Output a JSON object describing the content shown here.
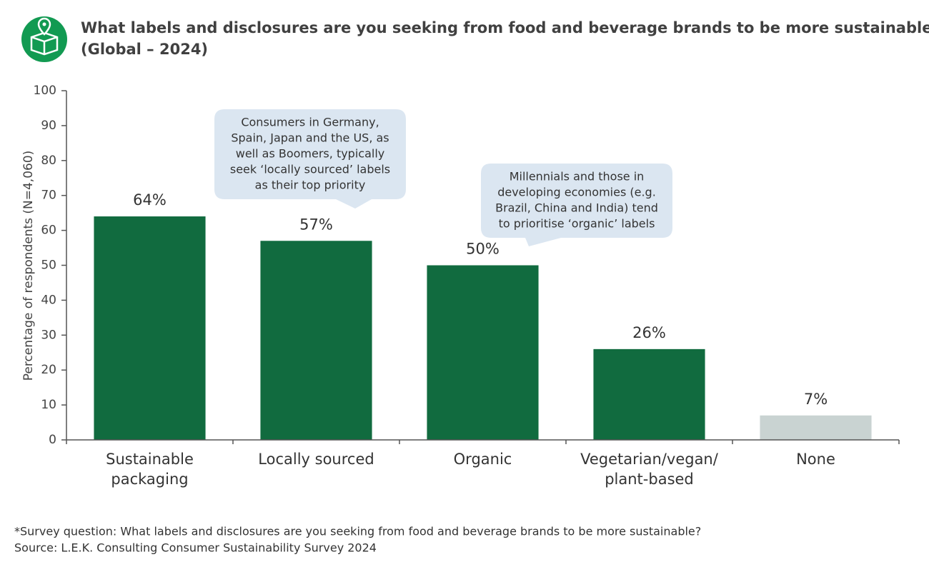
{
  "chart_data": {
    "type": "bar",
    "title": [
      "What labels and disclosures are you seeking from food and beverage brands to be more sustainable?*",
      "(Global – 2024)"
    ],
    "y_label": "Percentage of respondents (N=4,060)",
    "categories": [
      [
        "Sustainable",
        "packaging"
      ],
      [
        "Locally sourced"
      ],
      [
        "Organic"
      ],
      [
        "Vegetarian/vegan/",
        "plant-based"
      ],
      [
        "None"
      ]
    ],
    "values": [
      64,
      57,
      50,
      26,
      7
    ],
    "value_labels": [
      "64%",
      "57%",
      "50%",
      "26%",
      "7%"
    ],
    "colors": [
      "#116b3f",
      "#116b3f",
      "#116b3f",
      "#116b3f",
      "#c9d3d2"
    ],
    "ylim": [
      0,
      100
    ],
    "yticks": [
      0,
      10,
      20,
      30,
      40,
      50,
      60,
      70,
      80,
      90,
      100
    ],
    "annotations": [
      [
        "Consumers in Germany,",
        "Spain, Japan and the US, as",
        "well as Boomers, typically",
        "seek ‘locally sourced’ labels",
        "as their top priority"
      ],
      [
        "Millennials and those in",
        "developing economies (e.g.",
        "Brazil, China and India) tend",
        "to prioritise ‘organic’ labels"
      ]
    ],
    "notes": [
      "*Survey question: What labels and disclosures are you seeking from food and beverage brands to be more sustainable?",
      "Source: L.E.K. Consulting Consumer Sustainability Survey 2024"
    ]
  }
}
